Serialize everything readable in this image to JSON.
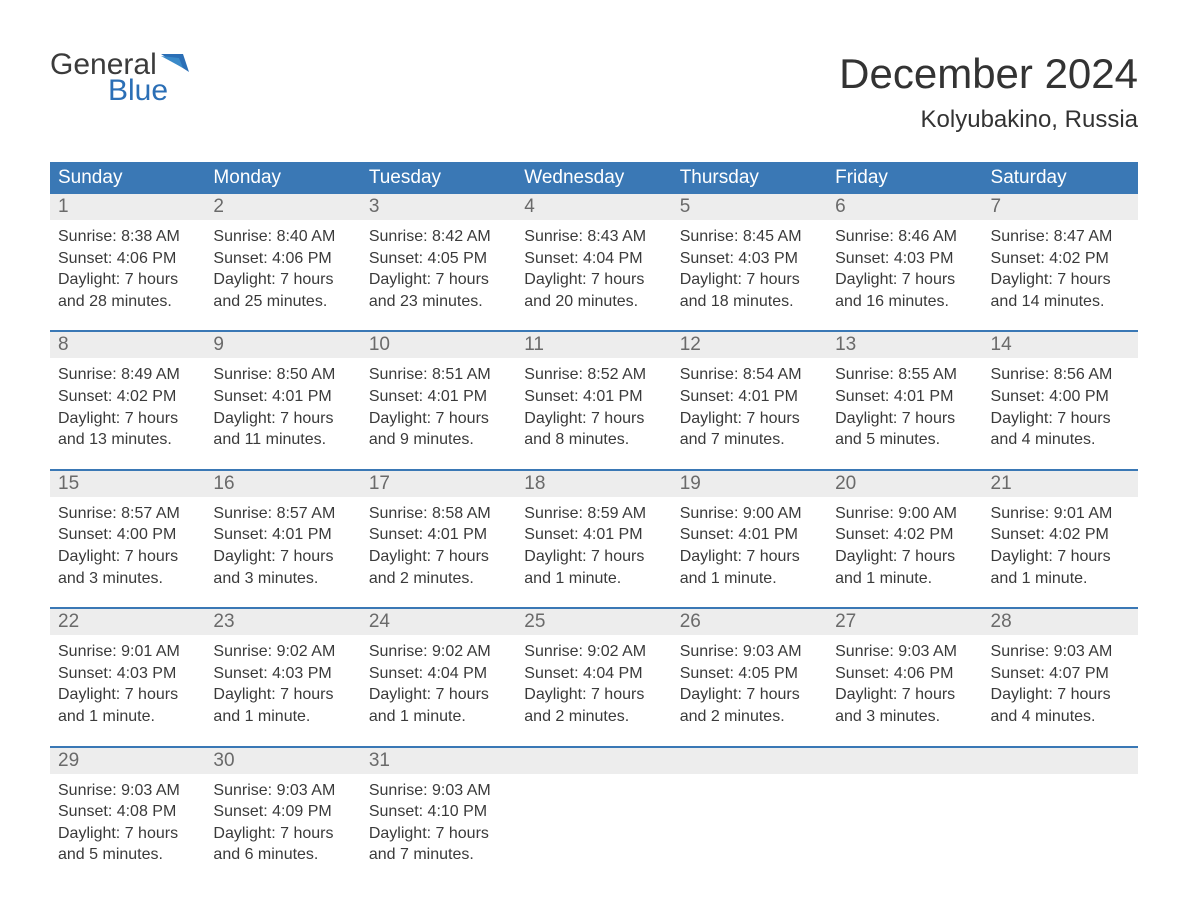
{
  "logo": {
    "word1": "General",
    "word2": "Blue"
  },
  "title": "December 2024",
  "location": "Kolyubakino, Russia",
  "colors": {
    "header_bg": "#3a78b5",
    "header_text": "#ffffff",
    "daynum_bg": "#ededed",
    "daynum_text": "#6a6a6a",
    "body_text": "#3a3a3a",
    "week_border": "#3a78b5",
    "logo_accent": "#2b6fb6"
  },
  "day_headers": [
    "Sunday",
    "Monday",
    "Tuesday",
    "Wednesday",
    "Thursday",
    "Friday",
    "Saturday"
  ],
  "weeks": [
    [
      {
        "n": "1",
        "sr": "Sunrise: 8:38 AM",
        "ss": "Sunset: 4:06 PM",
        "d1": "Daylight: 7 hours",
        "d2": "and 28 minutes."
      },
      {
        "n": "2",
        "sr": "Sunrise: 8:40 AM",
        "ss": "Sunset: 4:06 PM",
        "d1": "Daylight: 7 hours",
        "d2": "and 25 minutes."
      },
      {
        "n": "3",
        "sr": "Sunrise: 8:42 AM",
        "ss": "Sunset: 4:05 PM",
        "d1": "Daylight: 7 hours",
        "d2": "and 23 minutes."
      },
      {
        "n": "4",
        "sr": "Sunrise: 8:43 AM",
        "ss": "Sunset: 4:04 PM",
        "d1": "Daylight: 7 hours",
        "d2": "and 20 minutes."
      },
      {
        "n": "5",
        "sr": "Sunrise: 8:45 AM",
        "ss": "Sunset: 4:03 PM",
        "d1": "Daylight: 7 hours",
        "d2": "and 18 minutes."
      },
      {
        "n": "6",
        "sr": "Sunrise: 8:46 AM",
        "ss": "Sunset: 4:03 PM",
        "d1": "Daylight: 7 hours",
        "d2": "and 16 minutes."
      },
      {
        "n": "7",
        "sr": "Sunrise: 8:47 AM",
        "ss": "Sunset: 4:02 PM",
        "d1": "Daylight: 7 hours",
        "d2": "and 14 minutes."
      }
    ],
    [
      {
        "n": "8",
        "sr": "Sunrise: 8:49 AM",
        "ss": "Sunset: 4:02 PM",
        "d1": "Daylight: 7 hours",
        "d2": "and 13 minutes."
      },
      {
        "n": "9",
        "sr": "Sunrise: 8:50 AM",
        "ss": "Sunset: 4:01 PM",
        "d1": "Daylight: 7 hours",
        "d2": "and 11 minutes."
      },
      {
        "n": "10",
        "sr": "Sunrise: 8:51 AM",
        "ss": "Sunset: 4:01 PM",
        "d1": "Daylight: 7 hours",
        "d2": "and 9 minutes."
      },
      {
        "n": "11",
        "sr": "Sunrise: 8:52 AM",
        "ss": "Sunset: 4:01 PM",
        "d1": "Daylight: 7 hours",
        "d2": "and 8 minutes."
      },
      {
        "n": "12",
        "sr": "Sunrise: 8:54 AM",
        "ss": "Sunset: 4:01 PM",
        "d1": "Daylight: 7 hours",
        "d2": "and 7 minutes."
      },
      {
        "n": "13",
        "sr": "Sunrise: 8:55 AM",
        "ss": "Sunset: 4:01 PM",
        "d1": "Daylight: 7 hours",
        "d2": "and 5 minutes."
      },
      {
        "n": "14",
        "sr": "Sunrise: 8:56 AM",
        "ss": "Sunset: 4:00 PM",
        "d1": "Daylight: 7 hours",
        "d2": "and 4 minutes."
      }
    ],
    [
      {
        "n": "15",
        "sr": "Sunrise: 8:57 AM",
        "ss": "Sunset: 4:00 PM",
        "d1": "Daylight: 7 hours",
        "d2": "and 3 minutes."
      },
      {
        "n": "16",
        "sr": "Sunrise: 8:57 AM",
        "ss": "Sunset: 4:01 PM",
        "d1": "Daylight: 7 hours",
        "d2": "and 3 minutes."
      },
      {
        "n": "17",
        "sr": "Sunrise: 8:58 AM",
        "ss": "Sunset: 4:01 PM",
        "d1": "Daylight: 7 hours",
        "d2": "and 2 minutes."
      },
      {
        "n": "18",
        "sr": "Sunrise: 8:59 AM",
        "ss": "Sunset: 4:01 PM",
        "d1": "Daylight: 7 hours",
        "d2": "and 1 minute."
      },
      {
        "n": "19",
        "sr": "Sunrise: 9:00 AM",
        "ss": "Sunset: 4:01 PM",
        "d1": "Daylight: 7 hours",
        "d2": "and 1 minute."
      },
      {
        "n": "20",
        "sr": "Sunrise: 9:00 AM",
        "ss": "Sunset: 4:02 PM",
        "d1": "Daylight: 7 hours",
        "d2": "and 1 minute."
      },
      {
        "n": "21",
        "sr": "Sunrise: 9:01 AM",
        "ss": "Sunset: 4:02 PM",
        "d1": "Daylight: 7 hours",
        "d2": "and 1 minute."
      }
    ],
    [
      {
        "n": "22",
        "sr": "Sunrise: 9:01 AM",
        "ss": "Sunset: 4:03 PM",
        "d1": "Daylight: 7 hours",
        "d2": "and 1 minute."
      },
      {
        "n": "23",
        "sr": "Sunrise: 9:02 AM",
        "ss": "Sunset: 4:03 PM",
        "d1": "Daylight: 7 hours",
        "d2": "and 1 minute."
      },
      {
        "n": "24",
        "sr": "Sunrise: 9:02 AM",
        "ss": "Sunset: 4:04 PM",
        "d1": "Daylight: 7 hours",
        "d2": "and 1 minute."
      },
      {
        "n": "25",
        "sr": "Sunrise: 9:02 AM",
        "ss": "Sunset: 4:04 PM",
        "d1": "Daylight: 7 hours",
        "d2": "and 2 minutes."
      },
      {
        "n": "26",
        "sr": "Sunrise: 9:03 AM",
        "ss": "Sunset: 4:05 PM",
        "d1": "Daylight: 7 hours",
        "d2": "and 2 minutes."
      },
      {
        "n": "27",
        "sr": "Sunrise: 9:03 AM",
        "ss": "Sunset: 4:06 PM",
        "d1": "Daylight: 7 hours",
        "d2": "and 3 minutes."
      },
      {
        "n": "28",
        "sr": "Sunrise: 9:03 AM",
        "ss": "Sunset: 4:07 PM",
        "d1": "Daylight: 7 hours",
        "d2": "and 4 minutes."
      }
    ],
    [
      {
        "n": "29",
        "sr": "Sunrise: 9:03 AM",
        "ss": "Sunset: 4:08 PM",
        "d1": "Daylight: 7 hours",
        "d2": "and 5 minutes."
      },
      {
        "n": "30",
        "sr": "Sunrise: 9:03 AM",
        "ss": "Sunset: 4:09 PM",
        "d1": "Daylight: 7 hours",
        "d2": "and 6 minutes."
      },
      {
        "n": "31",
        "sr": "Sunrise: 9:03 AM",
        "ss": "Sunset: 4:10 PM",
        "d1": "Daylight: 7 hours",
        "d2": "and 7 minutes."
      },
      null,
      null,
      null,
      null
    ]
  ]
}
